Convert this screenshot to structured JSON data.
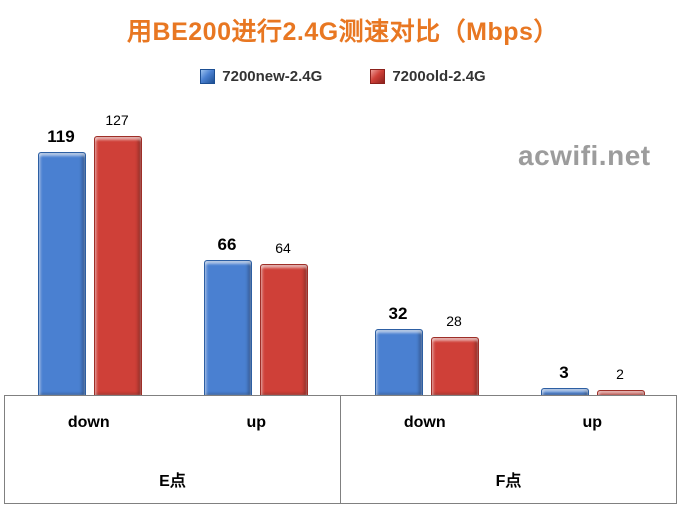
{
  "title": "用BE200进行2.4G测速对比（Mbps）",
  "watermark": "acwifi.net",
  "colors": {
    "title": "#e87722",
    "series_new": "#4a80d1",
    "series_old": "#cf4038",
    "axis_border": "#808080",
    "watermark": "#9c9c9c"
  },
  "chart_data": {
    "type": "bar",
    "title": "用BE200进行2.4G测速对比（Mbps）",
    "unit": "Mbps",
    "legend_position": "top",
    "gridlines": false,
    "ylim": [
      0,
      130
    ],
    "categories": [
      "E点 down",
      "E点 up",
      "F点 down",
      "F点 up"
    ],
    "groups": [
      {
        "label": "E点",
        "categories": [
          "down",
          "up"
        ]
      },
      {
        "label": "F点",
        "categories": [
          "down",
          "up"
        ]
      }
    ],
    "series": [
      {
        "name": "7200new-2.4G",
        "color": "#4a80d1",
        "values": [
          119,
          66,
          32,
          3
        ]
      },
      {
        "name": "7200old-2.4G",
        "color": "#cf4038",
        "values": [
          127,
          64,
          28,
          2
        ]
      }
    ]
  }
}
